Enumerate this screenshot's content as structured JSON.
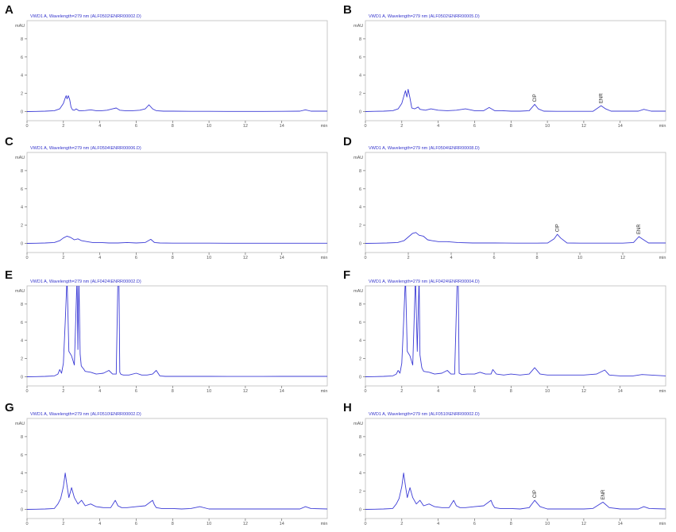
{
  "chart_data": [
    {
      "type": "line",
      "panel": "A",
      "title": "VWD1 A, Wavelength=279 nm (ALF0502\\ENRR00002.D)",
      "ylabel": "mAU",
      "xlabel": "min",
      "xlim": [
        0,
        16.5
      ],
      "ylim": [
        -1,
        10
      ],
      "xticks": [
        0,
        2,
        4,
        6,
        8,
        10,
        12,
        14
      ],
      "yticks": [
        0,
        2,
        4,
        6,
        8
      ],
      "x": [
        0,
        0.5,
        1,
        1.5,
        1.8,
        2.0,
        2.1,
        2.15,
        2.2,
        2.27,
        2.35,
        2.42,
        2.5,
        2.6,
        2.7,
        2.85,
        3.0,
        3.2,
        3.5,
        3.8,
        4.1,
        4.4,
        4.7,
        4.9,
        5.1,
        5.4,
        5.8,
        6.2,
        6.5,
        6.7,
        6.9,
        7.1,
        7.5,
        8,
        9,
        10,
        11,
        12,
        13,
        14,
        15,
        15.3,
        15.6,
        16.5
      ],
      "y": [
        0,
        0.02,
        0.05,
        0.1,
        0.3,
        0.9,
        1.5,
        1.75,
        1.4,
        1.75,
        1.3,
        0.5,
        0.2,
        0.15,
        0.3,
        0.1,
        0.1,
        0.12,
        0.2,
        0.1,
        0.1,
        0.15,
        0.3,
        0.4,
        0.15,
        0.1,
        0.1,
        0.15,
        0.3,
        0.75,
        0.3,
        0.1,
        0.05,
        0.05,
        0.03,
        0.03,
        0.02,
        0.02,
        0.02,
        0.03,
        0.05,
        0.2,
        0.05,
        0.05
      ]
    },
    {
      "type": "line",
      "panel": "B",
      "title": "VWD1 A, Wavelength=279 nm (ALF0502\\ENRR00005.D)",
      "ylabel": "mAU",
      "xlabel": "min",
      "xlim": [
        0,
        16.5
      ],
      "ylim": [
        -1,
        10
      ],
      "xticks": [
        0,
        2,
        4,
        6,
        8,
        10,
        12,
        14
      ],
      "yticks": [
        0,
        2,
        4,
        6,
        8
      ],
      "x": [
        0,
        0.5,
        1,
        1.5,
        1.8,
        2.0,
        2.1,
        2.2,
        2.28,
        2.35,
        2.45,
        2.55,
        2.7,
        2.9,
        3.0,
        3.3,
        3.6,
        4.0,
        4.5,
        5.0,
        5.5,
        6.0,
        6.5,
        6.8,
        7.1,
        7.5,
        8,
        8.5,
        9.0,
        9.3,
        9.5,
        9.8,
        10.5,
        11.5,
        12.5,
        12.95,
        13.2,
        13.5,
        14,
        15,
        15.3,
        15.7,
        16.5
      ],
      "y": [
        0,
        0.03,
        0.05,
        0.1,
        0.3,
        0.9,
        1.6,
        2.3,
        1.6,
        2.45,
        1.5,
        0.4,
        0.3,
        0.5,
        0.25,
        0.15,
        0.3,
        0.15,
        0.1,
        0.15,
        0.3,
        0.1,
        0.1,
        0.45,
        0.1,
        0.1,
        0.05,
        0.05,
        0.1,
        0.8,
        0.3,
        0.05,
        0.03,
        0.03,
        0.03,
        0.65,
        0.3,
        0.05,
        0.05,
        0.05,
        0.25,
        0.05,
        0.05
      ],
      "annotations": [
        {
          "text": "CIP",
          "x": 9.3
        },
        {
          "text": "ENR",
          "x": 12.95
        }
      ]
    },
    {
      "type": "line",
      "panel": "C",
      "title": "VWD1 A, Wavelength=279 nm (ALF0504\\ENRR00006.D)",
      "ylabel": "mAU",
      "xlabel": "min",
      "xlim": [
        0,
        16.5
      ],
      "ylim": [
        -1,
        10
      ],
      "xticks": [
        0,
        2,
        4,
        6,
        8,
        10,
        12,
        14
      ],
      "yticks": [
        0,
        2,
        4,
        6,
        8
      ],
      "x": [
        0,
        0.5,
        1,
        1.5,
        1.8,
        2.0,
        2.2,
        2.4,
        2.6,
        2.8,
        3.0,
        3.3,
        3.6,
        4.0,
        4.5,
        5.0,
        5.5,
        6.0,
        6.5,
        6.8,
        7.0,
        7.3,
        8,
        9,
        10,
        11,
        12,
        13,
        14,
        15,
        16.5
      ],
      "y": [
        0,
        0.02,
        0.05,
        0.1,
        0.3,
        0.6,
        0.8,
        0.65,
        0.4,
        0.5,
        0.3,
        0.2,
        0.1,
        0.1,
        0.05,
        0.05,
        0.1,
        0.05,
        0.1,
        0.45,
        0.1,
        0.05,
        0.03,
        0.03,
        0.03,
        0.02,
        0.02,
        0.02,
        0.02,
        0.02,
        0.02
      ]
    },
    {
      "type": "line",
      "panel": "D",
      "title": "VWD1 A, Wavelength=279 nm (ALF0504\\ENRR00008.D)",
      "ylabel": "mAU",
      "xlabel": "min",
      "xlim": [
        0,
        14
      ],
      "ylim": [
        -1,
        10
      ],
      "xticks": [
        0,
        2,
        4,
        6,
        8,
        10,
        12
      ],
      "yticks": [
        0,
        2,
        4,
        6,
        8
      ],
      "x": [
        0,
        0.5,
        1,
        1.5,
        1.8,
        2.0,
        2.2,
        2.35,
        2.5,
        2.7,
        2.9,
        3.1,
        3.4,
        3.8,
        4.3,
        5,
        6,
        7,
        8,
        8.5,
        8.8,
        8.95,
        9.1,
        9.4,
        10,
        11,
        12,
        12.5,
        12.75,
        12.9,
        13.2,
        14
      ],
      "y": [
        0,
        0.02,
        0.05,
        0.1,
        0.3,
        0.7,
        1.1,
        1.2,
        0.9,
        0.8,
        0.4,
        0.3,
        0.2,
        0.2,
        0.1,
        0.05,
        0.05,
        0.03,
        0.03,
        0.05,
        0.5,
        1.0,
        0.6,
        0.05,
        0.03,
        0.03,
        0.03,
        0.1,
        0.75,
        0.5,
        0.05,
        0.05
      ],
      "annotations": [
        {
          "text": "CIP",
          "x": 8.95
        },
        {
          "text": "ENR",
          "x": 12.75
        }
      ]
    },
    {
      "type": "line",
      "panel": "E",
      "title": "VWD1 A, Wavelength=279 nm (ALF0424\\ENRR00002.D)",
      "ylabel": "mAU",
      "xlabel": "min",
      "xlim": [
        0,
        16.5
      ],
      "ylim": [
        -1,
        10
      ],
      "xticks": [
        0,
        2,
        4,
        6,
        8,
        10,
        12,
        14
      ],
      "yticks": [
        0,
        2,
        4,
        6,
        8
      ],
      "x": [
        0,
        0.5,
        1,
        1.5,
        1.7,
        1.8,
        1.9,
        2.0,
        2.1,
        2.2,
        2.3,
        2.45,
        2.6,
        2.75,
        2.8,
        2.85,
        2.92,
        2.98,
        3.05,
        3.1,
        3.2,
        3.5,
        3.8,
        4.2,
        4.5,
        4.7,
        4.9,
        5.0,
        5.05,
        5.1,
        5.15,
        5.2,
        5.3,
        5.6,
        6.0,
        6.3,
        6.6,
        6.9,
        7.1,
        7.3,
        7.6,
        8,
        9,
        10,
        11,
        12,
        13,
        14,
        15,
        16.5
      ],
      "y": [
        0,
        0.02,
        0.05,
        0.1,
        0.3,
        0.8,
        0.4,
        1.5,
        6,
        11,
        2.8,
        2.3,
        1.3,
        11,
        3,
        11,
        2.5,
        1.2,
        1.0,
        0.9,
        0.6,
        0.5,
        0.3,
        0.4,
        0.7,
        0.3,
        0.3,
        11,
        11,
        0.5,
        0.3,
        0.25,
        0.2,
        0.2,
        0.4,
        0.2,
        0.2,
        0.3,
        0.7,
        0.1,
        0.05,
        0.05,
        0.05,
        0.05,
        0.04,
        0.04,
        0.04,
        0.05,
        0.05,
        0.05
      ]
    },
    {
      "type": "line",
      "panel": "F",
      "title": "VWD1 A, Wavelength=279 nm (ALF0424\\ENRR00004.D)",
      "ylabel": "mAU",
      "xlabel": "min",
      "xlim": [
        0,
        16.5
      ],
      "ylim": [
        -1,
        10
      ],
      "xticks": [
        0,
        2,
        4,
        6,
        8,
        10,
        12,
        14
      ],
      "yticks": [
        0,
        2,
        4,
        6,
        8
      ],
      "x": [
        0,
        0.5,
        1,
        1.5,
        1.7,
        1.8,
        1.9,
        2.0,
        2.1,
        2.2,
        2.3,
        2.45,
        2.6,
        2.75,
        2.85,
        2.95,
        3.0,
        3.1,
        3.2,
        3.5,
        3.8,
        4.2,
        4.5,
        4.7,
        4.9,
        5.05,
        5.1,
        5.15,
        5.3,
        5.6,
        6.0,
        6.3,
        6.6,
        6.9,
        7.0,
        7.2,
        7.6,
        8,
        8.5,
        9.0,
        9.3,
        9.6,
        10,
        11,
        12,
        12.7,
        13.15,
        13.4,
        14,
        14.7,
        15.2,
        16.5
      ],
      "y": [
        0,
        0.02,
        0.05,
        0.1,
        0.3,
        0.7,
        0.4,
        1.5,
        6,
        11,
        2.8,
        2.3,
        1.3,
        11,
        2.8,
        11,
        2.4,
        1.0,
        0.6,
        0.5,
        0.3,
        0.4,
        0.7,
        0.3,
        0.3,
        11,
        11,
        0.4,
        0.25,
        0.3,
        0.3,
        0.5,
        0.3,
        0.3,
        0.8,
        0.3,
        0.2,
        0.3,
        0.2,
        0.3,
        1.0,
        0.3,
        0.2,
        0.2,
        0.2,
        0.3,
        0.75,
        0.2,
        0.1,
        0.1,
        0.25,
        0.1
      ]
    },
    {
      "type": "line",
      "panel": "G",
      "title": "VWD1 A, Wavelength=279 nm (ALF0510\\ENRR00002.D)",
      "ylabel": "mAU",
      "xlabel": "min",
      "xlim": [
        0,
        16.5
      ],
      "ylim": [
        -1,
        10
      ],
      "xticks": [
        0,
        2,
        4,
        6,
        8,
        10,
        12,
        14
      ],
      "yticks": [
        0,
        2,
        4,
        6,
        8
      ],
      "x": [
        0,
        0.5,
        1,
        1.5,
        1.7,
        1.85,
        2.0,
        2.1,
        2.2,
        2.3,
        2.45,
        2.6,
        2.8,
        3.0,
        3.2,
        3.5,
        3.8,
        4.2,
        4.6,
        4.85,
        5.0,
        5.2,
        5.5,
        6.0,
        6.5,
        6.9,
        7.0,
        7.1,
        7.4,
        8,
        8.5,
        9.0,
        9.5,
        10,
        11,
        12,
        13,
        14,
        15,
        15.3,
        15.6,
        16.5
      ],
      "y": [
        0,
        0.02,
        0.05,
        0.1,
        0.6,
        1.2,
        2.5,
        4.0,
        2.6,
        1.3,
        2.4,
        1.3,
        0.6,
        1.0,
        0.4,
        0.6,
        0.3,
        0.2,
        0.2,
        1.0,
        0.4,
        0.2,
        0.2,
        0.3,
        0.4,
        1.0,
        0.5,
        0.2,
        0.1,
        0.1,
        0.05,
        0.1,
        0.3,
        0.05,
        0.05,
        0.05,
        0.05,
        0.05,
        0.05,
        0.3,
        0.1,
        0.05
      ]
    },
    {
      "type": "line",
      "panel": "H",
      "title": "VWD1 A, Wavelength=279 nm (ALF0510\\ENRR00002.D)",
      "ylabel": "mAU",
      "xlabel": "min",
      "xlim": [
        0,
        16.5
      ],
      "ylim": [
        -1,
        10
      ],
      "xticks": [
        0,
        2,
        4,
        6,
        8,
        10,
        12,
        14
      ],
      "yticks": [
        0,
        2,
        4,
        6,
        8
      ],
      "x": [
        0,
        0.5,
        1,
        1.5,
        1.7,
        1.85,
        2.0,
        2.1,
        2.2,
        2.3,
        2.45,
        2.6,
        2.8,
        3.0,
        3.2,
        3.5,
        3.8,
        4.2,
        4.6,
        4.85,
        5.0,
        5.2,
        5.5,
        6.0,
        6.5,
        6.9,
        7.0,
        7.1,
        7.4,
        8,
        8.5,
        9.0,
        9.3,
        9.6,
        10,
        11,
        12,
        12.5,
        13.05,
        13.4,
        14,
        15,
        15.3,
        15.6,
        16.5
      ],
      "y": [
        0,
        0.02,
        0.05,
        0.1,
        0.6,
        1.2,
        2.5,
        4.0,
        2.6,
        1.3,
        2.4,
        1.3,
        0.6,
        1.0,
        0.4,
        0.6,
        0.3,
        0.2,
        0.2,
        1.0,
        0.4,
        0.2,
        0.2,
        0.3,
        0.4,
        1.0,
        0.5,
        0.2,
        0.1,
        0.1,
        0.05,
        0.2,
        1.0,
        0.3,
        0.05,
        0.05,
        0.05,
        0.1,
        0.8,
        0.2,
        0.05,
        0.05,
        0.3,
        0.1,
        0.05
      ],
      "annotations": [
        {
          "text": "CIP",
          "x": 9.3
        },
        {
          "text": "ENR",
          "x": 13.05
        }
      ]
    }
  ],
  "colors": {
    "trace": "#3c3cd6",
    "title": "#3333cc",
    "axis": "#555555",
    "frame": "#bbbbbb"
  }
}
